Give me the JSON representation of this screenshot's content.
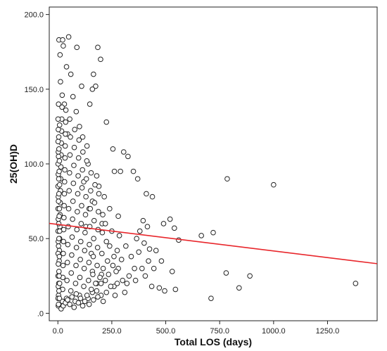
{
  "chart_data": {
    "type": "scatter",
    "title": "",
    "xlabel": "Total LOS (days)",
    "ylabel": "25(OH)D",
    "xlim": [
      -40,
      1480
    ],
    "ylim": [
      -5,
      205
    ],
    "x_ticks": [
      {
        "value": 0,
        "label": "0.0"
      },
      {
        "value": 250,
        "label": "250.0"
      },
      {
        "value": 500,
        "label": "500.0"
      },
      {
        "value": 750,
        "label": "750.0"
      },
      {
        "value": 1000,
        "label": "1000.0"
      },
      {
        "value": 1250,
        "label": "1250.0"
      }
    ],
    "y_ticks": [
      {
        "value": 0,
        "label": ".0"
      },
      {
        "value": 50,
        "label": "50.0"
      },
      {
        "value": 100,
        "label": "100.0"
      },
      {
        "value": 150,
        "label": "150.0"
      },
      {
        "value": 200,
        "label": "200.0"
      }
    ],
    "grid": false,
    "legend": "none",
    "marker": "open-circle",
    "fit_line": {
      "x": [
        -40,
        1480
      ],
      "y": [
        60.2,
        33.2
      ],
      "color": "#e8262b"
    },
    "points": [
      [
        5,
        183
      ],
      [
        10,
        173
      ],
      [
        22,
        183
      ],
      [
        25,
        179
      ],
      [
        50,
        185
      ],
      [
        88,
        178
      ],
      [
        165,
        160
      ],
      [
        185,
        178
      ],
      [
        198,
        170
      ],
      [
        110,
        152
      ],
      [
        175,
        152
      ],
      [
        148,
        140
      ],
      [
        160,
        150
      ],
      [
        225,
        128
      ],
      [
        255,
        110
      ],
      [
        305,
        108
      ],
      [
        325,
        105
      ],
      [
        12,
        155
      ],
      [
        40,
        165
      ],
      [
        60,
        160
      ],
      [
        30,
        140
      ],
      [
        262,
        95
      ],
      [
        290,
        95
      ],
      [
        350,
        95
      ],
      [
        370,
        90
      ],
      [
        410,
        80
      ],
      [
        438,
        78
      ],
      [
        490,
        60
      ],
      [
        520,
        63
      ],
      [
        540,
        57
      ],
      [
        560,
        49
      ],
      [
        665,
        52
      ],
      [
        720,
        54
      ],
      [
        785,
        90
      ],
      [
        1000,
        86
      ],
      [
        1380,
        20
      ],
      [
        530,
        28
      ],
      [
        780,
        27
      ],
      [
        840,
        17
      ],
      [
        890,
        25
      ],
      [
        710,
        10
      ],
      [
        435,
        18
      ],
      [
        470,
        17
      ],
      [
        495,
        15
      ],
      [
        545,
        16
      ],
      [
        310,
        14
      ],
      [
        300,
        22
      ],
      [
        420,
        35
      ],
      [
        375,
        41
      ],
      [
        400,
        47
      ],
      [
        425,
        43
      ],
      [
        260,
        38
      ],
      [
        280,
        30
      ],
      [
        330,
        25
      ],
      [
        355,
        30
      ],
      [
        365,
        50
      ],
      [
        395,
        62
      ],
      [
        280,
        65
      ],
      [
        240,
        70
      ],
      [
        225,
        48
      ],
      [
        205,
        60
      ],
      [
        190,
        85
      ],
      [
        180,
        92
      ],
      [
        220,
        60
      ],
      [
        210,
        30
      ],
      [
        200,
        20
      ],
      [
        180,
        15
      ],
      [
        160,
        28
      ],
      [
        155,
        40
      ],
      [
        145,
        70
      ],
      [
        130,
        58
      ],
      [
        120,
        88
      ],
      [
        140,
        100
      ],
      [
        160,
        75
      ],
      [
        135,
        112
      ],
      [
        115,
        118
      ],
      [
        100,
        125
      ],
      [
        85,
        135
      ],
      [
        70,
        145
      ],
      [
        55,
        130
      ],
      [
        45,
        120
      ],
      [
        2,
        5
      ],
      [
        3,
        12
      ],
      [
        4,
        20
      ],
      [
        5,
        28
      ],
      [
        6,
        35
      ],
      [
        7,
        42
      ],
      [
        8,
        50
      ],
      [
        9,
        58
      ],
      [
        10,
        66
      ],
      [
        11,
        74
      ],
      [
        12,
        82
      ],
      [
        13,
        90
      ],
      [
        14,
        98
      ],
      [
        15,
        106
      ],
      [
        16,
        114
      ],
      [
        17,
        122
      ],
      [
        18,
        130
      ],
      [
        19,
        138
      ],
      [
        20,
        146
      ],
      [
        21,
        8
      ],
      [
        22,
        16
      ],
      [
        23,
        24
      ],
      [
        24,
        32
      ],
      [
        25,
        40
      ],
      [
        26,
        48
      ],
      [
        27,
        56
      ],
      [
        28,
        64
      ],
      [
        29,
        72
      ],
      [
        30,
        80
      ],
      [
        31,
        88
      ],
      [
        32,
        96
      ],
      [
        33,
        104
      ],
      [
        34,
        112
      ],
      [
        35,
        120
      ],
      [
        36,
        128
      ],
      [
        37,
        136
      ],
      [
        1,
        10
      ],
      [
        1,
        25
      ],
      [
        1,
        40
      ],
      [
        1,
        55
      ],
      [
        1,
        70
      ],
      [
        1,
        85
      ],
      [
        1,
        100
      ],
      [
        1,
        115
      ],
      [
        1,
        130
      ],
      [
        2,
        18
      ],
      [
        2,
        33
      ],
      [
        2,
        48
      ],
      [
        2,
        63
      ],
      [
        2,
        78
      ],
      [
        2,
        93
      ],
      [
        2,
        108
      ],
      [
        2,
        123
      ],
      [
        3,
        6
      ],
      [
        3,
        45
      ],
      [
        3,
        75
      ],
      [
        3,
        105
      ],
      [
        3,
        140
      ],
      [
        4,
        60
      ],
      [
        4,
        90
      ],
      [
        4,
        118
      ],
      [
        5,
        15
      ],
      [
        5,
        50
      ],
      [
        5,
        80
      ],
      [
        5,
        110
      ],
      [
        6,
        25
      ],
      [
        6,
        65
      ],
      [
        6,
        95
      ],
      [
        7,
        10
      ],
      [
        7,
        38
      ],
      [
        7,
        70
      ],
      [
        7,
        102
      ],
      [
        8,
        20
      ],
      [
        8,
        55
      ],
      [
        8,
        86
      ],
      [
        8,
        126
      ],
      [
        40,
        10
      ],
      [
        42,
        22
      ],
      [
        44,
        34
      ],
      [
        46,
        46
      ],
      [
        48,
        58
      ],
      [
        50,
        70
      ],
      [
        52,
        82
      ],
      [
        54,
        94
      ],
      [
        56,
        106
      ],
      [
        58,
        118
      ],
      [
        60,
        15
      ],
      [
        62,
        27
      ],
      [
        64,
        39
      ],
      [
        66,
        51
      ],
      [
        68,
        63
      ],
      [
        70,
        75
      ],
      [
        72,
        87
      ],
      [
        74,
        99
      ],
      [
        76,
        111
      ],
      [
        78,
        123
      ],
      [
        80,
        8
      ],
      [
        82,
        20
      ],
      [
        84,
        32
      ],
      [
        86,
        44
      ],
      [
        88,
        56
      ],
      [
        90,
        68
      ],
      [
        92,
        80
      ],
      [
        94,
        92
      ],
      [
        96,
        104
      ],
      [
        98,
        116
      ],
      [
        100,
        12
      ],
      [
        102,
        24
      ],
      [
        104,
        36
      ],
      [
        106,
        48
      ],
      [
        108,
        60
      ],
      [
        110,
        72
      ],
      [
        112,
        84
      ],
      [
        114,
        96
      ],
      [
        116,
        108
      ],
      [
        120,
        18
      ],
      [
        122,
        30
      ],
      [
        124,
        42
      ],
      [
        126,
        54
      ],
      [
        128,
        66
      ],
      [
        130,
        78
      ],
      [
        132,
        90
      ],
      [
        134,
        102
      ],
      [
        140,
        10
      ],
      [
        142,
        22
      ],
      [
        144,
        34
      ],
      [
        146,
        46
      ],
      [
        148,
        58
      ],
      [
        150,
        70
      ],
      [
        152,
        82
      ],
      [
        154,
        94
      ],
      [
        160,
        14
      ],
      [
        162,
        26
      ],
      [
        164,
        38
      ],
      [
        166,
        50
      ],
      [
        168,
        62
      ],
      [
        170,
        74
      ],
      [
        172,
        86
      ],
      [
        180,
        20
      ],
      [
        182,
        32
      ],
      [
        184,
        44
      ],
      [
        186,
        56
      ],
      [
        188,
        68
      ],
      [
        190,
        80
      ],
      [
        200,
        12
      ],
      [
        202,
        26
      ],
      [
        204,
        40
      ],
      [
        206,
        54
      ],
      [
        208,
        66
      ],
      [
        215,
        78
      ],
      [
        220,
        22
      ],
      [
        230,
        35
      ],
      [
        240,
        45
      ],
      [
        250,
        55
      ],
      [
        260,
        18
      ],
      [
        270,
        28
      ],
      [
        275,
        42
      ],
      [
        285,
        52
      ],
      [
        295,
        36
      ],
      [
        315,
        45
      ],
      [
        320,
        20
      ],
      [
        340,
        38
      ],
      [
        360,
        22
      ],
      [
        380,
        55
      ],
      [
        390,
        30
      ],
      [
        405,
        25
      ],
      [
        415,
        58
      ],
      [
        445,
        30
      ],
      [
        455,
        42
      ],
      [
        480,
        35
      ],
      [
        15,
        3
      ],
      [
        25,
        5
      ],
      [
        35,
        7
      ],
      [
        45,
        9
      ],
      [
        55,
        6
      ],
      [
        65,
        11
      ],
      [
        75,
        4
      ],
      [
        85,
        13
      ],
      [
        95,
        7
      ],
      [
        105,
        10
      ],
      [
        115,
        5
      ],
      [
        125,
        8
      ],
      [
        135,
        12
      ],
      [
        145,
        6
      ],
      [
        155,
        16
      ],
      [
        165,
        9
      ],
      [
        175,
        20
      ],
      [
        185,
        11
      ],
      [
        195,
        24
      ],
      [
        210,
        8
      ],
      [
        225,
        14
      ],
      [
        235,
        26
      ],
      [
        245,
        18
      ],
      [
        255,
        32
      ],
      [
        265,
        12
      ],
      [
        275,
        20
      ]
    ]
  }
}
